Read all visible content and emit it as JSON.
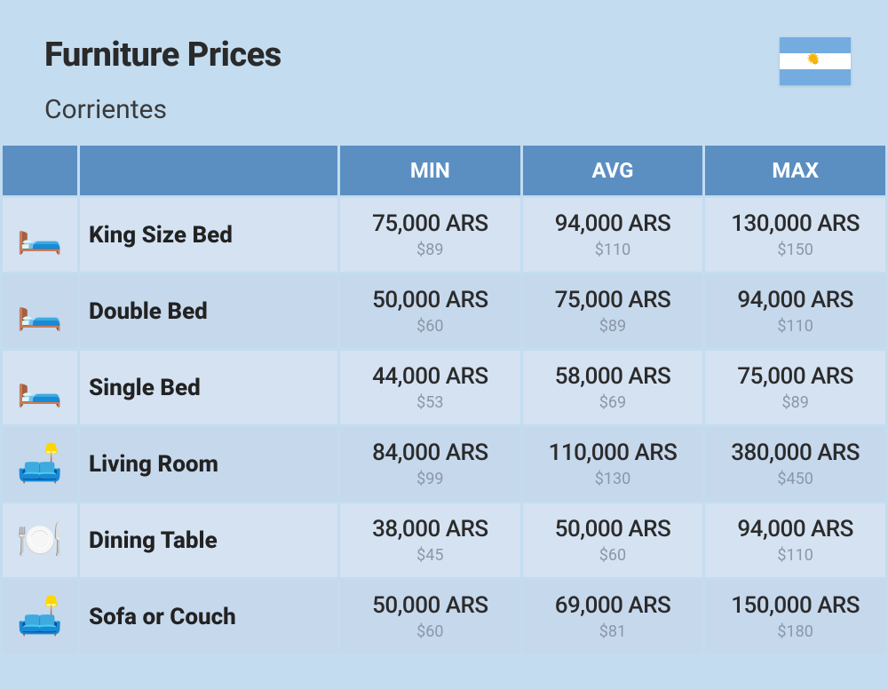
{
  "header": {
    "title": "Furniture Prices",
    "subtitle": "Corrientes",
    "flag_colors": {
      "band": "#74acdf",
      "center": "#ffffff",
      "sun": "#f6b40e"
    }
  },
  "table": {
    "type": "table",
    "background_color": "#c3dcf0",
    "header_bg": "#5b8fc2",
    "header_fg": "#ffffff",
    "row_even_bg": "#d4e2f2",
    "row_odd_bg": "#c6d8ec",
    "ars_color": "#2b2b2b",
    "usd_color": "#8a97a8",
    "ars_fontsize": 26,
    "usd_fontsize": 18,
    "header_fontsize": 24,
    "name_fontsize": 26,
    "columns": [
      "",
      "",
      "MIN",
      "AVG",
      "MAX"
    ],
    "rows": [
      {
        "icon": "🛏️",
        "name": "King Size Bed",
        "min_ars": "75,000 ARS",
        "min_usd": "$89",
        "avg_ars": "94,000 ARS",
        "avg_usd": "$110",
        "max_ars": "130,000 ARS",
        "max_usd": "$150"
      },
      {
        "icon": "🛏️",
        "name": "Double Bed",
        "min_ars": "50,000 ARS",
        "min_usd": "$60",
        "avg_ars": "75,000 ARS",
        "avg_usd": "$89",
        "max_ars": "94,000 ARS",
        "max_usd": "$110"
      },
      {
        "icon": "🛏️",
        "name": "Single Bed",
        "min_ars": "44,000 ARS",
        "min_usd": "$53",
        "avg_ars": "58,000 ARS",
        "avg_usd": "$69",
        "max_ars": "75,000 ARS",
        "max_usd": "$89"
      },
      {
        "icon": "🛋️",
        "name": "Living Room",
        "min_ars": "84,000 ARS",
        "min_usd": "$99",
        "avg_ars": "110,000 ARS",
        "avg_usd": "$130",
        "max_ars": "380,000 ARS",
        "max_usd": "$450"
      },
      {
        "icon": "🍽️",
        "name": "Dining Table",
        "min_ars": "38,000 ARS",
        "min_usd": "$45",
        "avg_ars": "50,000 ARS",
        "avg_usd": "$60",
        "max_ars": "94,000 ARS",
        "max_usd": "$110"
      },
      {
        "icon": "🛋️",
        "name": "Sofa or Couch",
        "min_ars": "50,000 ARS",
        "min_usd": "$60",
        "avg_ars": "69,000 ARS",
        "avg_usd": "$81",
        "max_ars": "150,000 ARS",
        "max_usd": "$180"
      }
    ]
  }
}
